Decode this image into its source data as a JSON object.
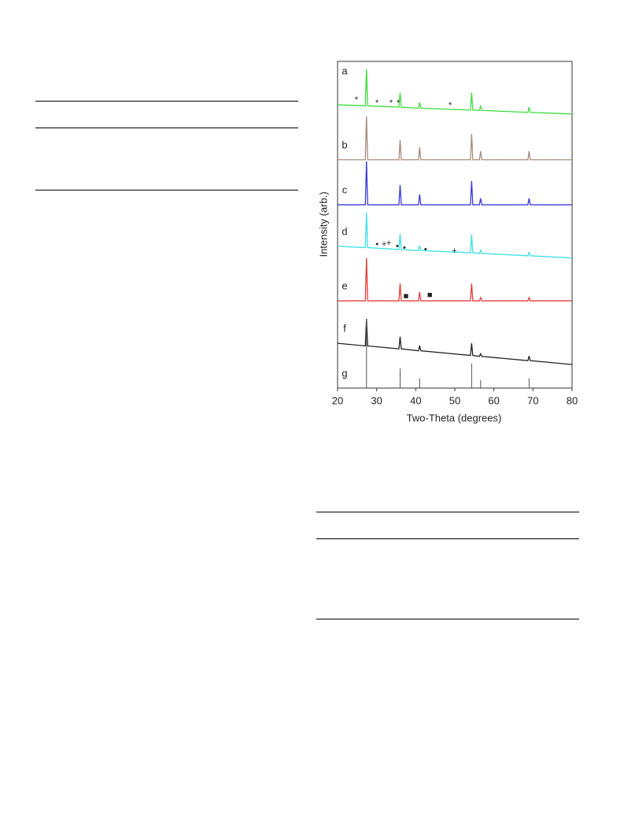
{
  "chart_data": {
    "type": "line",
    "xlabel": "Two-Theta (degrees)",
    "ylabel": "Intensity (arb.)",
    "xlim": [
      20,
      80
    ],
    "xticks": [
      20,
      30,
      40,
      50,
      60,
      70,
      80
    ],
    "ylim": [
      0,
      100
    ],
    "x": [
      20,
      27.1,
      27.4,
      27.7,
      35.7,
      36,
      36.3,
      40.7,
      41,
      41.3,
      54,
      54.3,
      54.6,
      56.3,
      56.6,
      56.9,
      68.7,
      69,
      69.3,
      80
    ],
    "series": [
      {
        "name": "a",
        "color": "#3ade3a",
        "values": [
          86.7,
          86.4,
          97.6,
          86.4,
          86.0,
          90.4,
          86.0,
          85.7,
          87.5,
          85.7,
          85.1,
          90.4,
          85.1,
          85.0,
          86.3,
          85.0,
          84.4,
          86.0,
          84.4,
          83.9
        ]
      },
      {
        "name": "b",
        "color": "#a58a7a",
        "values": [
          69.9,
          69.9,
          83.1,
          69.9,
          69.9,
          75.9,
          69.9,
          69.9,
          73.7,
          69.9,
          69.9,
          77.8,
          69.9,
          69.9,
          72.5,
          69.9,
          69.9,
          72.5,
          69.9,
          69.9
        ]
      },
      {
        "name": "c",
        "color": "#3a3ade",
        "values": [
          56.1,
          56.1,
          69.4,
          56.1,
          56.1,
          62.2,
          56.1,
          56.1,
          59.3,
          56.1,
          56.1,
          63.4,
          56.1,
          56.1,
          58.1,
          56.1,
          56.1,
          58.1,
          56.1,
          56.1
        ]
      },
      {
        "name": "d",
        "color": "#3ae0e6",
        "values": [
          43.4,
          43.0,
          53.7,
          43.0,
          42.4,
          47.2,
          42.4,
          42.1,
          43.6,
          42.1,
          41.4,
          47.0,
          41.4,
          41.2,
          42.2,
          41.2,
          40.5,
          41.5,
          40.5,
          39.8
        ]
      },
      {
        "name": "e",
        "color": "#e63a3a",
        "values": [
          26.7,
          26.7,
          39.8,
          26.7,
          26.7,
          32.0,
          26.7,
          26.7,
          29.4,
          26.7,
          26.7,
          32.0,
          26.7,
          26.7,
          27.7,
          26.7,
          26.7,
          27.7,
          26.7,
          26.7
        ]
      },
      {
        "name": "f",
        "color": "#222222",
        "values": [
          13.7,
          12.9,
          21.2,
          12.9,
          12.0,
          15.7,
          12.0,
          11.4,
          13.0,
          11.4,
          10.0,
          13.7,
          10.0,
          9.7,
          10.5,
          9.7,
          8.4,
          9.8,
          8.4,
          7.2
        ]
      },
      {
        "name": "g",
        "color": "#555555",
        "style": "sticks",
        "values": [
          0,
          0,
          21.2,
          0,
          0,
          6,
          0,
          0,
          3,
          0,
          0,
          7.5,
          0,
          0,
          2.4,
          0,
          0,
          3,
          0,
          0
        ]
      }
    ],
    "annotations": [
      {
        "text": "*",
        "x": 24.8,
        "y": 88.2
      },
      {
        "text": "*",
        "x": 30.1,
        "y": 87.2
      },
      {
        "text": "*",
        "x": 33.7,
        "y": 87.2
      },
      {
        "text": "*",
        "x": 35.5,
        "y": 87.2
      },
      {
        "text": "*",
        "x": 48.8,
        "y": 86.5
      },
      {
        "text": "•",
        "x": 30.1,
        "y": 43.9
      },
      {
        "text": "+",
        "x": 31.9,
        "y": 43.9
      },
      {
        "text": "+",
        "x": 33.1,
        "y": 44.3
      },
      {
        "text": "•",
        "x": 35.3,
        "y": 43.4
      },
      {
        "text": "•",
        "x": 37.1,
        "y": 42.9
      },
      {
        "text": "•",
        "x": 42.5,
        "y": 42.4
      },
      {
        "text": "+",
        "x": 49.9,
        "y": 41.9
      },
      {
        "text": "■",
        "x": 37.5,
        "y": 28.0
      },
      {
        "text": "■",
        "x": 43.6,
        "y": 28.4
      }
    ]
  }
}
